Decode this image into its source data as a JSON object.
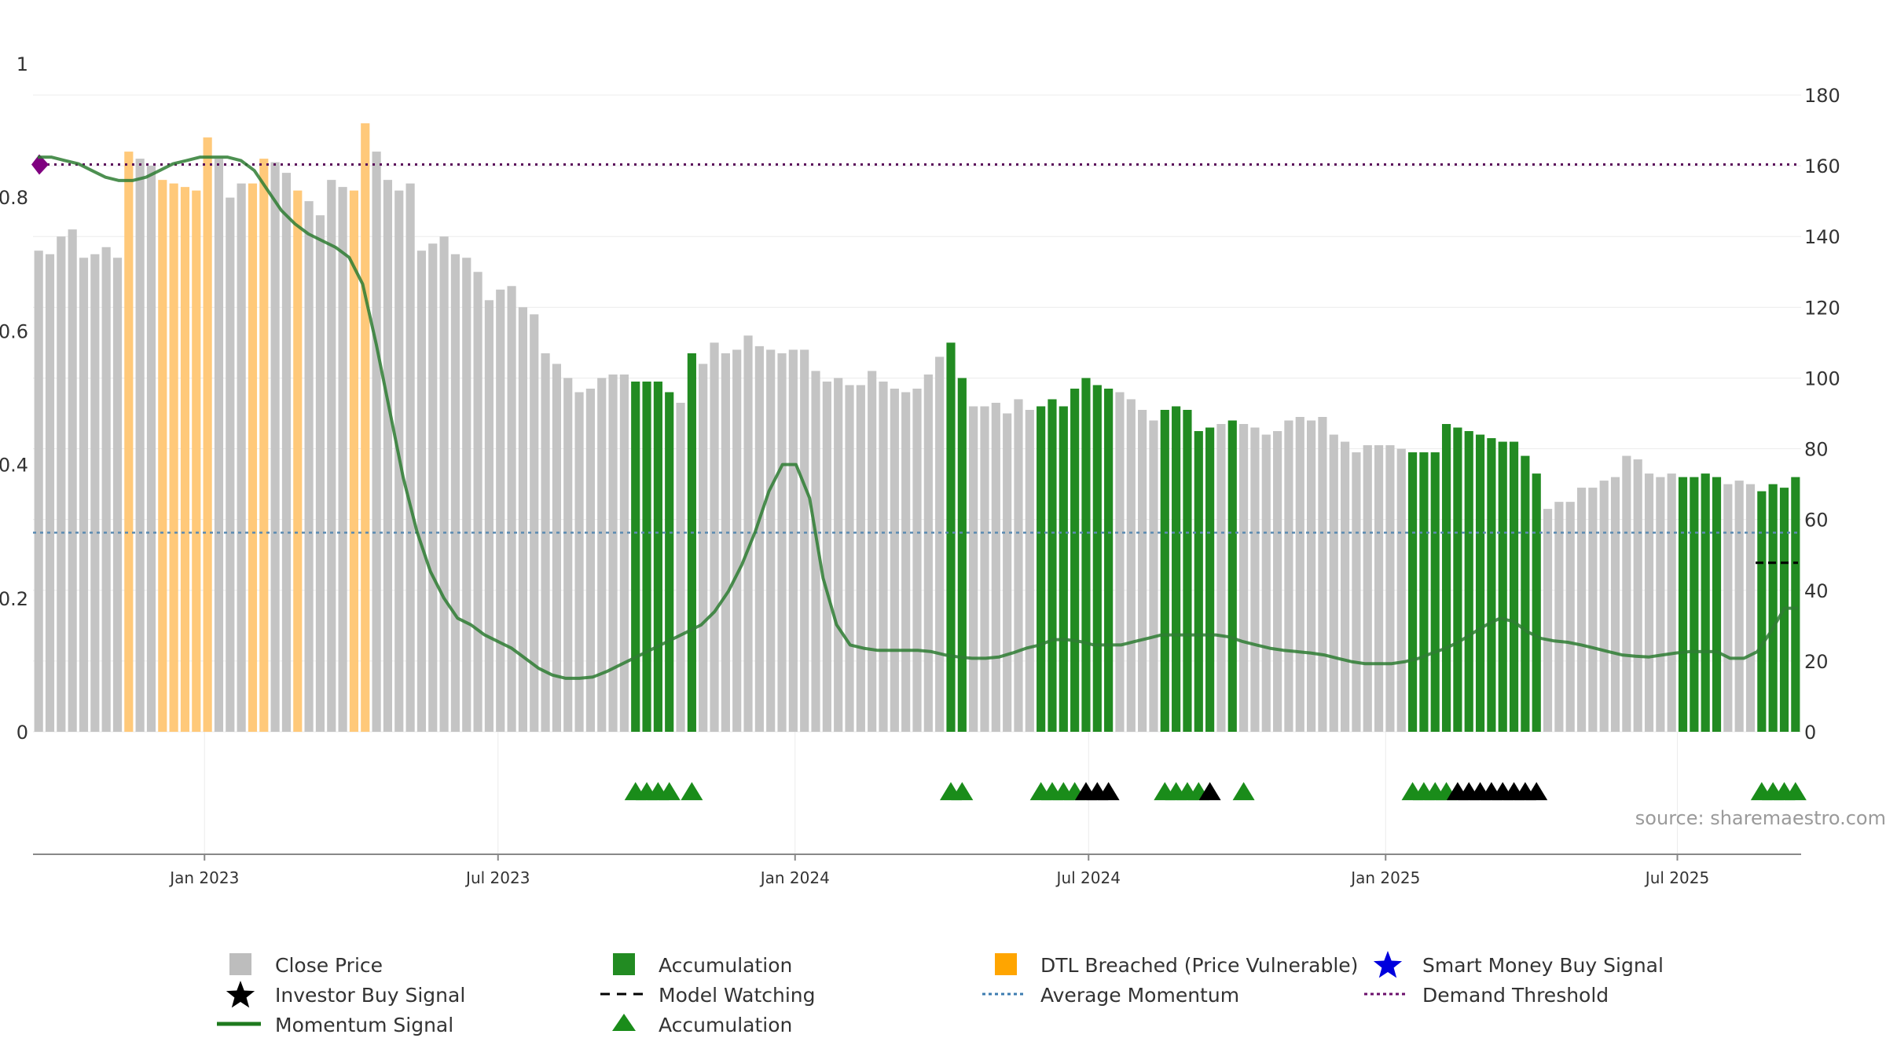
{
  "chart_data": {
    "type": "bar",
    "left_axis": {
      "ticks": [
        "0",
        "0.2",
        "0.4",
        "0.6",
        "0.8",
        "1"
      ],
      "range": [
        0,
        1
      ]
    },
    "right_axis": {
      "ticks": [
        "0",
        "20",
        "40",
        "60",
        "80",
        "100",
        "120",
        "140",
        "160",
        "180"
      ],
      "range": [
        0,
        180
      ]
    },
    "x_axis": {
      "ticks": [
        "Jan 2023",
        "Jul 2023",
        "Jan 2024",
        "Jul 2024",
        "Jan 2025",
        "Jul 2025"
      ]
    },
    "date_range": [
      "2022-09",
      "2025-09"
    ],
    "price_bar_count": 157,
    "price_series": {
      "name": "Close Price",
      "approx_values": [
        136,
        135,
        140,
        142,
        134,
        135,
        137,
        134,
        164,
        162,
        160,
        156,
        155,
        154,
        153,
        168,
        162,
        151,
        155,
        155,
        162,
        161,
        158,
        153,
        150,
        146,
        156,
        154,
        153,
        172,
        164,
        156,
        153,
        155,
        136,
        138,
        140,
        135,
        134,
        130,
        122,
        125,
        126,
        120,
        118,
        107,
        104,
        100,
        96,
        97,
        100,
        101,
        101,
        99,
        99,
        99,
        96,
        93,
        107,
        104,
        110,
        107,
        108,
        112,
        109,
        108,
        107,
        108,
        108,
        102,
        99,
        100,
        98,
        98,
        102,
        99,
        97,
        96,
        97,
        101,
        106,
        110,
        100,
        92,
        92,
        93,
        90,
        94,
        91,
        92,
        94,
        92,
        97,
        100,
        98,
        97,
        96,
        94,
        91,
        88,
        91,
        92,
        91,
        85,
        86,
        87,
        88,
        87,
        86,
        84,
        85,
        88,
        89,
        88,
        89,
        84,
        82,
        79,
        81,
        81,
        81,
        80,
        79,
        79,
        79,
        87,
        86,
        85,
        84,
        83,
        82,
        82,
        78,
        73,
        63,
        65,
        65,
        69,
        69,
        71,
        72,
        78,
        77,
        73,
        72,
        73,
        72,
        72,
        73,
        72,
        70,
        71,
        70,
        68,
        70,
        69,
        72
      ]
    },
    "accumulation_bar_ranges": [
      [
        53,
        56
      ],
      [
        58,
        58
      ],
      [
        81,
        82
      ],
      [
        89,
        95
      ],
      [
        100,
        104
      ],
      [
        106,
        106
      ],
      [
        122,
        128
      ],
      [
        129,
        133
      ],
      [
        146,
        149
      ],
      [
        153,
        156
      ]
    ],
    "dtl_breached_bar_ranges": [
      [
        8,
        8
      ],
      [
        11,
        12
      ],
      [
        13,
        15
      ],
      [
        19,
        20
      ],
      [
        23,
        23
      ],
      [
        28,
        29
      ]
    ],
    "momentum_signal": {
      "name": "Momentum Signal",
      "approx_values": [
        0.86,
        0.86,
        0.855,
        0.85,
        0.84,
        0.83,
        0.825,
        0.825,
        0.83,
        0.84,
        0.85,
        0.855,
        0.86,
        0.86,
        0.86,
        0.855,
        0.84,
        0.81,
        0.78,
        0.76,
        0.745,
        0.735,
        0.725,
        0.71,
        0.67,
        0.58,
        0.48,
        0.38,
        0.3,
        0.24,
        0.2,
        0.17,
        0.16,
        0.145,
        0.135,
        0.125,
        0.11,
        0.095,
        0.085,
        0.08,
        0.08,
        0.082,
        0.09,
        0.1,
        0.11,
        0.12,
        0.13,
        0.14,
        0.15,
        0.16,
        0.18,
        0.21,
        0.25,
        0.3,
        0.36,
        0.4,
        0.4,
        0.35,
        0.23,
        0.16,
        0.13,
        0.125,
        0.122,
        0.122,
        0.122,
        0.122,
        0.12,
        0.115,
        0.112,
        0.11,
        0.11,
        0.112,
        0.118,
        0.125,
        0.13,
        0.138,
        0.138,
        0.135,
        0.13,
        0.13,
        0.13,
        0.135,
        0.14,
        0.145,
        0.145,
        0.145,
        0.145,
        0.145,
        0.142,
        0.135,
        0.13,
        0.125,
        0.122,
        0.12,
        0.118,
        0.115,
        0.11,
        0.105,
        0.102,
        0.102,
        0.102,
        0.105,
        0.11,
        0.118,
        0.125,
        0.135,
        0.148,
        0.16,
        0.17,
        0.165,
        0.15,
        0.14,
        0.136,
        0.134,
        0.13,
        0.125,
        0.12,
        0.115,
        0.113,
        0.112,
        0.115,
        0.118,
        0.12,
        0.12,
        0.12,
        0.11,
        0.11,
        0.12,
        0.15,
        0.185,
        0.185
      ],
      "x_end_fraction": 1.0
    },
    "model_watching_y": 0.253,
    "average_momentum": {
      "name": "Average Momentum",
      "value": 0.298
    },
    "demand_threshold": {
      "name": "Demand Threshold",
      "value": 0.849
    },
    "signal_markers": {
      "accumulation_triangles": [
        53,
        54,
        55,
        56,
        58,
        81,
        82,
        89,
        90,
        91,
        92,
        100,
        101,
        102,
        103,
        107,
        122,
        123,
        124,
        125,
        153,
        154,
        155,
        156
      ],
      "investor_buy_triangles": [
        93,
        94,
        95,
        104,
        126,
        127,
        128,
        129,
        130,
        131,
        132,
        133
      ],
      "smart_money_buy": []
    },
    "legend": [
      {
        "label": "Close Price",
        "key": "close_price",
        "symbol": "gray-square",
        "color": "#bdbdbd"
      },
      {
        "label": "Accumulation",
        "key": "accumulation_bar",
        "symbol": "green-square",
        "color": "#228b22"
      },
      {
        "label": "DTL Breached (Price Vulnerable)",
        "key": "dtl_breached",
        "symbol": "orange-square",
        "color": "#ffa500"
      },
      {
        "label": "Smart Money Buy Signal",
        "key": "smart_money",
        "symbol": "blue-star",
        "color": "#0000dd"
      },
      {
        "label": "Investor Buy Signal",
        "key": "investor_buy",
        "symbol": "black-star",
        "color": "#000000"
      },
      {
        "label": "Model Watching",
        "key": "model_watching",
        "symbol": "black-dashed-line",
        "color": "#000000"
      },
      {
        "label": "Average Momentum",
        "key": "avg_momentum",
        "symbol": "blue-dotted-line",
        "color": "#3d7cb0"
      },
      {
        "label": "Demand Threshold",
        "key": "demand_threshold",
        "symbol": "purple-dotted-line",
        "color": "#6b0f6b"
      },
      {
        "label": "Momentum Signal",
        "key": "momentum_signal",
        "symbol": "green-line",
        "color": "#1e7a1e"
      },
      {
        "label": "Accumulation",
        "key": "accumulation_triangle",
        "symbol": "green-triangle",
        "color": "#1a8c1a"
      }
    ],
    "source_note": "source: sharemaestro.com",
    "grid": true
  },
  "colors": {
    "close_price": "#c4c4c4",
    "accumulation": "#228b22",
    "dtl_breached": "#ffc97a",
    "momentum": "#2e7d32",
    "avg_momentum": "#5b8bb2",
    "demand_threshold": "#5a0a5a",
    "diamond": "#800080",
    "investor_buy": "#000000",
    "gridline": "#ececec",
    "axis": "#888888"
  }
}
